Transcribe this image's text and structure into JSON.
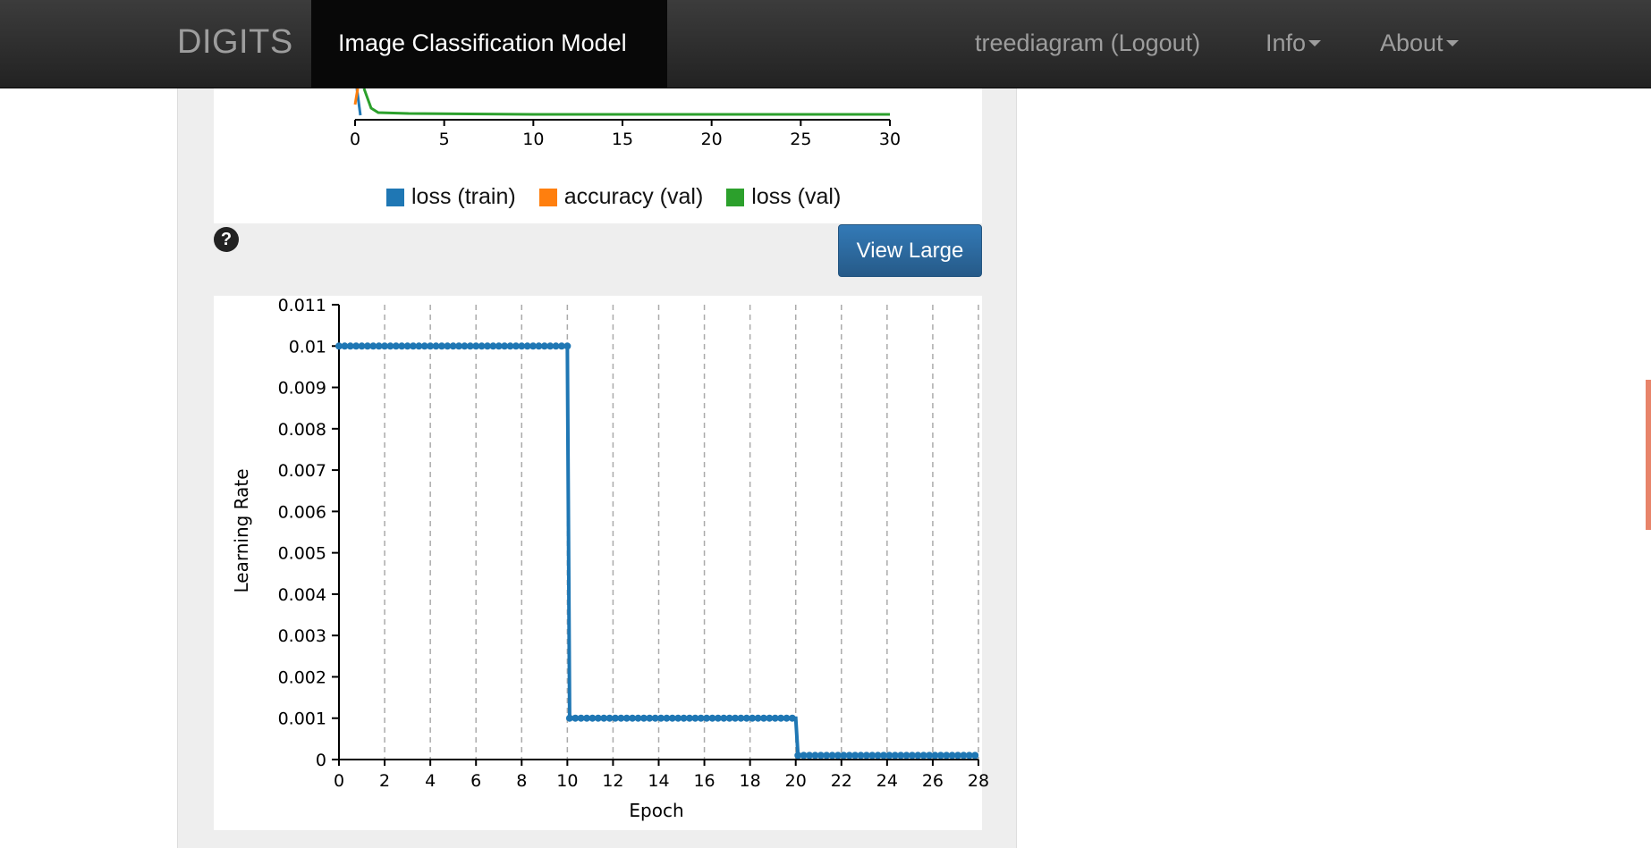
{
  "navbar": {
    "brand": "DIGITS",
    "active_title": "Image Classification Model",
    "user_link": "treediagram (Logout)",
    "info_label": "Info",
    "about_label": "About"
  },
  "top_chart": {
    "x_ticks": [
      "0",
      "5",
      "10",
      "15",
      "20",
      "25",
      "30"
    ],
    "legend": [
      {
        "label": "loss (train)",
        "color": "#1f77b4"
      },
      {
        "label": "accuracy (val)",
        "color": "#ff7f0e"
      },
      {
        "label": "loss (val)",
        "color": "#2ca02c"
      }
    ]
  },
  "toolbar": {
    "help_glyph": "?",
    "view_large_label": "View Large"
  },
  "chart_data": {
    "type": "line",
    "title": "",
    "xlabel": "Epoch",
    "ylabel": "Learning Rate",
    "xlim": [
      0,
      28
    ],
    "ylim": [
      0,
      0.011
    ],
    "x_ticks": [
      0,
      2,
      4,
      6,
      8,
      10,
      12,
      14,
      16,
      18,
      20,
      22,
      24,
      26,
      28
    ],
    "y_ticks": [
      0,
      0.001,
      0.002,
      0.003,
      0.004,
      0.005,
      0.006,
      0.007,
      0.008,
      0.009,
      0.01,
      0.011
    ],
    "grid": "vertical-dashed",
    "color": "#1f77b4",
    "series": [
      {
        "segments": [
          {
            "x_start": 0,
            "x_end": 10,
            "y": 0.01
          },
          {
            "x_start": 10.1,
            "x_end": 20,
            "y": 0.001
          },
          {
            "x_start": 20.1,
            "x_end": 28,
            "y": 0.0001
          }
        ],
        "sample_step": 0.25
      }
    ]
  }
}
